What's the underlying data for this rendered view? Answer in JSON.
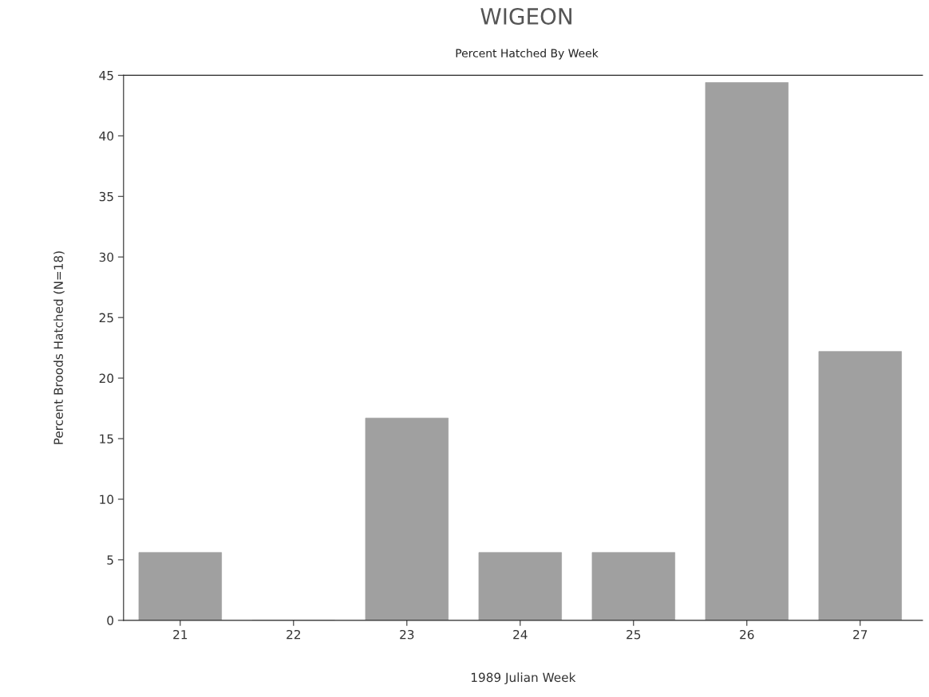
{
  "chart_data": {
    "type": "bar",
    "title": "WIGEON",
    "subtitle": "Percent Hatched By Week",
    "xlabel": "1989 Julian Week",
    "ylabel": "Percent Broods Hatched (N=18)",
    "categories": [
      "21",
      "22",
      "23",
      "24",
      "25",
      "26",
      "27"
    ],
    "values": [
      5.6,
      0,
      16.7,
      5.6,
      5.6,
      44.4,
      22.2
    ],
    "color": "#a0a0a0",
    "ylim": [
      0,
      45
    ],
    "yticks": [
      0,
      5,
      10,
      15,
      20,
      25,
      30,
      35,
      40,
      45
    ],
    "grid": false
  }
}
